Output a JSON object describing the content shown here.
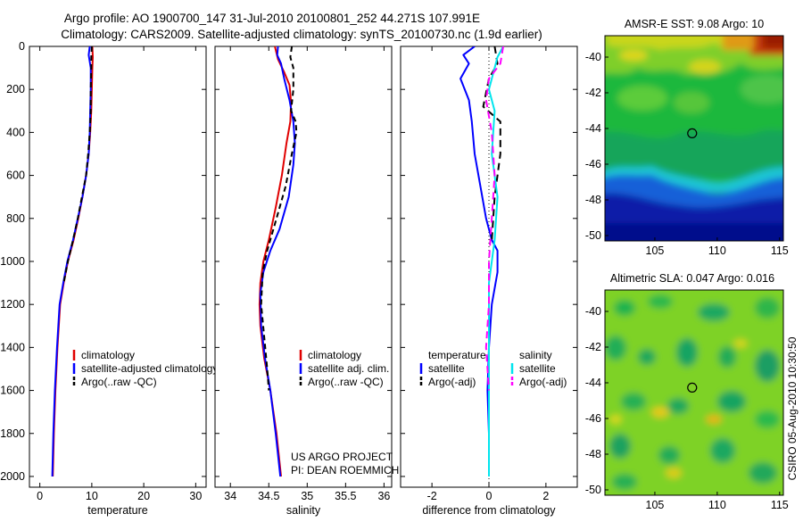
{
  "figure": {
    "title_line1": "Argo profile: AO 1900700_147 31-Jul-2010 20100801_252 44.271S 107.991E",
    "title_line2": "Climatology: CARS2009. Satellite-adjusted climatology: synTS_20100730.nc (1.9d earlier)",
    "credit_line1": "US ARGO PROJECT",
    "credit_line2": "PI: DEAN ROEMMICH",
    "vertical_stamp": "CSIRO 05-Aug-2010 10:30:50"
  },
  "colors": {
    "climatology": "#e00000",
    "satellite": "#0000ff",
    "argo": "#000000",
    "sal_satellite": "#00e5ee",
    "sal_argo": "#ff00ff"
  },
  "chart_data": [
    {
      "type": "line",
      "id": "temperature",
      "xlabel": "temperature",
      "ylabel": "",
      "xlim": [
        -2,
        32
      ],
      "ylim": [
        2050,
        0
      ],
      "xticks": [
        0,
        10,
        20,
        30
      ],
      "yticks": [
        0,
        200,
        400,
        600,
        800,
        1000,
        1200,
        1400,
        1600,
        1800,
        2000
      ],
      "legend": [
        "climatology",
        "satellite-adjusted climatology",
        "Argo(..raw -QC)"
      ],
      "series": [
        {
          "name": "climatology",
          "color": "#e00000",
          "dash": "",
          "x": [
            10.1,
            10.2,
            10.1,
            10.0,
            9.9,
            9.7,
            9.4,
            8.9,
            8.2,
            7.4,
            6.5,
            5.4,
            4.6,
            3.9,
            3.4,
            3.0,
            2.7,
            2.5
          ],
          "y": [
            0,
            50,
            100,
            200,
            300,
            400,
            500,
            600,
            700,
            800,
            900,
            1000,
            1100,
            1200,
            1400,
            1600,
            1800,
            2000
          ]
        },
        {
          "name": "satellite-adjusted climatology",
          "color": "#0000ff",
          "dash": "",
          "x": [
            9.6,
            9.4,
            9.8,
            9.8,
            9.7,
            9.6,
            9.4,
            8.9,
            8.2,
            7.3,
            6.4,
            5.3,
            4.5,
            3.8,
            3.3,
            2.9,
            2.6,
            2.4
          ],
          "y": [
            0,
            40,
            100,
            200,
            300,
            400,
            500,
            600,
            700,
            800,
            900,
            1000,
            1100,
            1200,
            1400,
            1600,
            1800,
            2000
          ]
        },
        {
          "name": "Argo(..raw -QC)",
          "color": "#000000",
          "dash": "6,4",
          "x": [
            10.0,
            9.9,
            9.9,
            9.8,
            9.8,
            9.6,
            9.3,
            8.9,
            8.1,
            7.3,
            6.4,
            5.4,
            4.6
          ],
          "y": [
            0,
            50,
            100,
            200,
            300,
            400,
            500,
            600,
            700,
            800,
            900,
            1000,
            1100
          ]
        }
      ]
    },
    {
      "type": "line",
      "id": "salinity",
      "xlabel": "salinity",
      "ylabel": "",
      "xlim": [
        33.8,
        36.1
      ],
      "ylim": [
        2050,
        0
      ],
      "xticks": [
        34,
        34.5,
        35,
        35.5,
        36
      ],
      "legend": [
        "climatology",
        "satellite adj. clim.",
        "Argo(..raw -QC)"
      ],
      "series": [
        {
          "name": "climatology",
          "color": "#e00000",
          "dash": "",
          "x": [
            34.58,
            34.62,
            34.7,
            34.77,
            34.79,
            34.78,
            34.73,
            34.67,
            34.59,
            34.5,
            34.43,
            34.39,
            34.38,
            34.39,
            34.44,
            34.52,
            34.6,
            34.66
          ],
          "y": [
            0,
            60,
            120,
            180,
            260,
            350,
            450,
            600,
            750,
            900,
            1000,
            1100,
            1200,
            1300,
            1450,
            1600,
            1800,
            2000
          ]
        },
        {
          "name": "satellite adj. clim.",
          "color": "#0000ff",
          "dash": "",
          "x": [
            34.62,
            34.61,
            34.66,
            34.7,
            34.77,
            34.82,
            34.84,
            34.82,
            34.76,
            34.64,
            34.52,
            34.43,
            34.39,
            34.4,
            34.45,
            34.52,
            34.59,
            34.65
          ],
          "y": [
            0,
            40,
            80,
            150,
            250,
            350,
            450,
            550,
            700,
            850,
            950,
            1050,
            1150,
            1300,
            1450,
            1600,
            1800,
            2000
          ]
        },
        {
          "name": "Argo(..raw -QC)",
          "color": "#000000",
          "dash": "6,4",
          "x": [
            34.8,
            34.78,
            34.82,
            34.82,
            34.79,
            34.85,
            34.86,
            34.8,
            34.72,
            34.6,
            34.48,
            34.42,
            34.4,
            34.44,
            34.48,
            34.5
          ],
          "y": [
            0,
            50,
            100,
            200,
            300,
            350,
            400,
            500,
            650,
            800,
            950,
            1050,
            1200,
            1350,
            1500,
            1600
          ]
        }
      ]
    },
    {
      "type": "line",
      "id": "difference",
      "xlabel": "difference from climatology",
      "ylabel": "",
      "xlim": [
        -3.1,
        3.1
      ],
      "ylim": [
        2050,
        0
      ],
      "xticks": [
        -2,
        0,
        2
      ],
      "legend_col1": [
        "temperature",
        "satellite",
        "Argo(-adj)"
      ],
      "legend_col2": [
        "salinity",
        "satellite",
        "Argo(-adj)"
      ],
      "series": [
        {
          "name": "temperature satellite",
          "color": "#0000ff",
          "dash": "",
          "x": [
            -0.5,
            -0.9,
            -0.7,
            -1.0,
            -0.7,
            -0.6,
            -0.5,
            -0.3,
            -0.1,
            0.1,
            0.3,
            0.3,
            0.1,
            0.0,
            -0.05,
            0.0
          ],
          "y": [
            0,
            40,
            80,
            150,
            250,
            350,
            500,
            650,
            800,
            900,
            950,
            1050,
            1200,
            1400,
            1600,
            1800
          ]
        },
        {
          "name": "temperature Argo(-adj)",
          "color": "#000000",
          "dash": "8,5",
          "x": [
            0.2,
            0.3,
            0.0,
            -0.2,
            0.4,
            0.4,
            0.2,
            0.1
          ],
          "y": [
            0,
            80,
            150,
            280,
            350,
            500,
            700,
            900
          ]
        },
        {
          "name": "salinity satellite",
          "color": "#00e5ee",
          "dash": "",
          "x": [
            0.5,
            0.3,
            0.2,
            0.0,
            0.2,
            0.1,
            0.3,
            0.2,
            0.0,
            0.0,
            0.0,
            0.0
          ],
          "y": [
            0,
            50,
            100,
            200,
            300,
            500,
            700,
            900,
            1100,
            1300,
            1600,
            2000
          ]
        },
        {
          "name": "salinity Argo(-adj)",
          "color": "#ff00ff",
          "dash": "8,5",
          "x": [
            0.5,
            0.4,
            0.0,
            -0.1,
            0.1,
            0.2,
            0.1,
            0.0,
            0.0,
            -0.1,
            0.0
          ],
          "y": [
            0,
            80,
            150,
            250,
            400,
            600,
            800,
            1000,
            1200,
            1400,
            1600
          ]
        }
      ]
    },
    {
      "type": "heatmap",
      "id": "sst_map",
      "title": "AMSR-E SST: 9.08 Argo: 10",
      "xlim": [
        101,
        115.3
      ],
      "ylim": [
        -50.3,
        -38.8
      ],
      "xticks": [
        105,
        110,
        115
      ],
      "yticks": [
        -40,
        -42,
        -44,
        -46,
        -48,
        -50
      ],
      "argo_marker": {
        "lon": 107.99,
        "lat": -44.27
      }
    },
    {
      "type": "heatmap",
      "id": "sla_map",
      "title": "Altimetric SLA: 0.047 Argo: 0.016",
      "xlim": [
        101,
        115.3
      ],
      "ylim": [
        -50.3,
        -38.8
      ],
      "xticks": [
        105,
        110,
        115
      ],
      "yticks": [
        -40,
        -42,
        -44,
        -46,
        -48,
        -50
      ],
      "argo_marker": {
        "lon": 107.99,
        "lat": -44.27
      }
    }
  ]
}
